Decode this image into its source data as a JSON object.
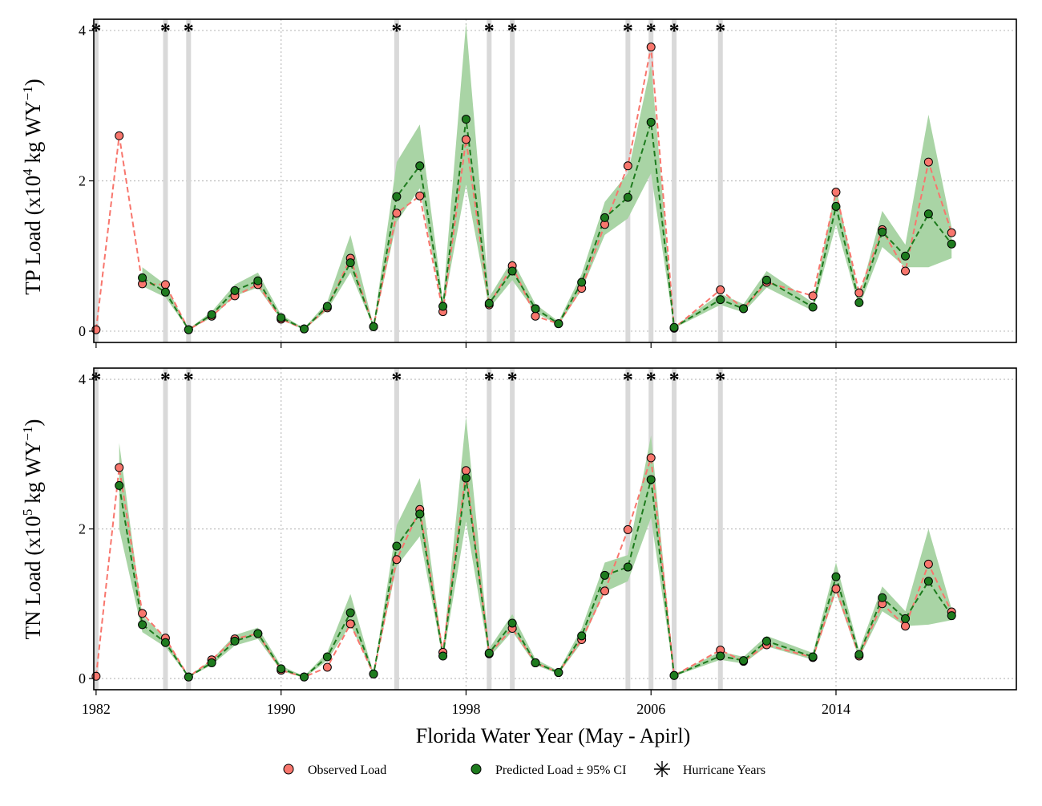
{
  "chart_data": [
    {
      "type": "line",
      "panel": "top",
      "ylabel_pre": "TP Load (x10",
      "ylabel_exp1": "4",
      "ylabel_mid": " kg WY",
      "ylabel_exp2": "−1",
      "ylabel_post": ")",
      "xlim": [
        1981.9,
        2021.8
      ],
      "ylim": [
        -0.15,
        4.15
      ],
      "yticks": [
        0,
        2,
        4
      ],
      "hurricane_years": [
        1982,
        1985,
        1986,
        1995,
        1999,
        2000,
        2005,
        2006,
        2007,
        2009
      ],
      "series": [
        {
          "name": "Observed Load",
          "x": [
            1982,
            1983,
            1984,
            1985,
            1986,
            1987,
            1988,
            1989,
            1990,
            1991,
            1992,
            1993,
            1994,
            1995,
            1996,
            1997,
            1998,
            1999,
            2000,
            2001,
            2002,
            2003,
            2004,
            2005,
            2006,
            2007,
            2009,
            2010,
            2011,
            2013,
            2014,
            2015,
            2016,
            2017,
            2018,
            2019
          ],
          "values": [
            0.02,
            2.6,
            0.63,
            0.62,
            0.02,
            0.2,
            0.47,
            0.62,
            0.16,
            0.03,
            0.31,
            0.97,
            0.06,
            1.57,
            1.8,
            0.26,
            2.55,
            0.35,
            0.87,
            0.2,
            0.1,
            0.57,
            1.42,
            2.2,
            3.78,
            0.04,
            0.55,
            0.3,
            0.65,
            0.47,
            1.85,
            0.51,
            1.35,
            0.8,
            2.25,
            1.31
          ]
        },
        {
          "name": "Predicted Load ± 95% CI",
          "x": [
            1984,
            1985,
            1986,
            1987,
            1988,
            1989,
            1990,
            1991,
            1992,
            1993,
            1994,
            1995,
            1996,
            1997,
            1998,
            1999,
            2000,
            2001,
            2002,
            2003,
            2004,
            2005,
            2006,
            2007,
            2009,
            2010,
            2011,
            2013,
            2014,
            2015,
            2016,
            2017,
            2018,
            2019
          ],
          "values": [
            0.71,
            0.52,
            0.02,
            0.22,
            0.54,
            0.67,
            0.18,
            0.03,
            0.33,
            0.91,
            0.06,
            1.79,
            2.2,
            0.33,
            2.82,
            0.37,
            0.8,
            0.3,
            0.1,
            0.65,
            1.51,
            1.78,
            2.78,
            0.05,
            0.42,
            0.3,
            0.68,
            0.32,
            1.66,
            0.38,
            1.32,
            1.0,
            1.56,
            1.16
          ],
          "ci_lower": [
            0.6,
            0.45,
            0.02,
            0.18,
            0.47,
            0.58,
            0.15,
            0.02,
            0.28,
            0.78,
            0.05,
            1.45,
            1.9,
            0.28,
            1.95,
            0.3,
            0.68,
            0.25,
            0.08,
            0.55,
            1.28,
            1.5,
            2.1,
            0.04,
            0.35,
            0.25,
            0.58,
            0.27,
            1.42,
            0.32,
            1.12,
            0.85,
            0.85,
            0.97
          ],
          "ci_upper": [
            0.85,
            0.62,
            0.03,
            0.26,
            0.62,
            0.78,
            0.22,
            0.04,
            0.39,
            1.28,
            0.07,
            2.25,
            2.75,
            0.4,
            4.1,
            0.45,
            0.95,
            0.36,
            0.13,
            0.76,
            1.72,
            2.1,
            3.55,
            0.06,
            0.5,
            0.36,
            0.8,
            0.38,
            1.92,
            0.45,
            1.6,
            1.15,
            2.88,
            1.38
          ]
        }
      ]
    },
    {
      "type": "line",
      "panel": "bottom",
      "ylabel_pre": "TN Load (x10",
      "ylabel_exp1": "5",
      "ylabel_mid": " kg WY",
      "ylabel_exp2": "−1",
      "ylabel_post": ")",
      "xlim": [
        1981.9,
        2021.8
      ],
      "ylim": [
        -0.15,
        4.15
      ],
      "yticks": [
        0,
        2,
        4
      ],
      "hurricane_years": [
        1982,
        1985,
        1986,
        1995,
        1999,
        2000,
        2005,
        2006,
        2007,
        2009
      ],
      "series": [
        {
          "name": "Observed Load",
          "x": [
            1982,
            1983,
            1984,
            1985,
            1986,
            1987,
            1988,
            1989,
            1990,
            1991,
            1992,
            1993,
            1994,
            1995,
            1996,
            1997,
            1998,
            1999,
            2000,
            2001,
            2002,
            2003,
            2004,
            2005,
            2006,
            2007,
            2009,
            2010,
            2011,
            2013,
            2014,
            2015,
            2016,
            2017,
            2018,
            2019
          ],
          "values": [
            0.03,
            2.82,
            0.87,
            0.54,
            0.02,
            0.25,
            0.53,
            0.6,
            0.11,
            0.02,
            0.15,
            0.73,
            0.06,
            1.59,
            2.26,
            0.35,
            2.78,
            0.33,
            0.67,
            0.21,
            0.08,
            0.52,
            1.17,
            1.99,
            2.95,
            0.04,
            0.38,
            0.23,
            0.45,
            0.28,
            1.2,
            0.3,
            1.0,
            0.7,
            1.53,
            0.89
          ]
        },
        {
          "name": "Predicted Load ± 95% CI",
          "x": [
            1983,
            1984,
            1985,
            1986,
            1987,
            1988,
            1989,
            1990,
            1991,
            1992,
            1993,
            1994,
            1995,
            1996,
            1997,
            1998,
            1999,
            2000,
            2001,
            2002,
            2003,
            2004,
            2005,
            2006,
            2007,
            2009,
            2010,
            2011,
            2013,
            2014,
            2015,
            2016,
            2017,
            2018,
            2019
          ],
          "values": [
            2.58,
            0.72,
            0.48,
            0.02,
            0.21,
            0.5,
            0.6,
            0.13,
            0.02,
            0.29,
            0.88,
            0.06,
            1.77,
            2.2,
            0.3,
            2.68,
            0.34,
            0.74,
            0.21,
            0.08,
            0.57,
            1.38,
            1.49,
            2.66,
            0.04,
            0.3,
            0.24,
            0.5,
            0.29,
            1.36,
            0.32,
            1.08,
            0.8,
            1.3,
            0.84
          ],
          "ci_lower": [
            2.0,
            0.62,
            0.42,
            0.02,
            0.18,
            0.44,
            0.53,
            0.1,
            0.01,
            0.24,
            0.72,
            0.05,
            1.5,
            1.9,
            0.26,
            2.1,
            0.28,
            0.63,
            0.18,
            0.06,
            0.48,
            1.16,
            1.3,
            2.15,
            0.03,
            0.25,
            0.2,
            0.43,
            0.25,
            1.15,
            0.27,
            0.9,
            0.7,
            0.72,
            0.78
          ],
          "ci_upper": [
            3.15,
            0.84,
            0.55,
            0.03,
            0.25,
            0.58,
            0.68,
            0.17,
            0.03,
            0.35,
            1.13,
            0.07,
            2.05,
            2.68,
            0.36,
            3.5,
            0.4,
            0.86,
            0.26,
            0.1,
            0.67,
            1.55,
            1.65,
            3.25,
            0.05,
            0.36,
            0.29,
            0.57,
            0.34,
            1.55,
            0.38,
            1.23,
            0.9,
            2.0,
            0.93
          ]
        }
      ]
    }
  ],
  "xaxis": {
    "label": "Florida Water Year (May - Apirl)",
    "ticks": [
      1982,
      1990,
      1998,
      2006,
      2014
    ]
  },
  "legend": {
    "observed": "Observed Load",
    "predicted": "Predicted Load ± 95% CI",
    "hurricane": "Hurricane Years",
    "placement": "bottom"
  },
  "colors": {
    "observed": "#f8766d",
    "predicted": "#1e7b1e",
    "ci_band": "#a9d4a5",
    "hurricane_bar": "#d9d9d9",
    "grid": "#bdbdbd"
  }
}
